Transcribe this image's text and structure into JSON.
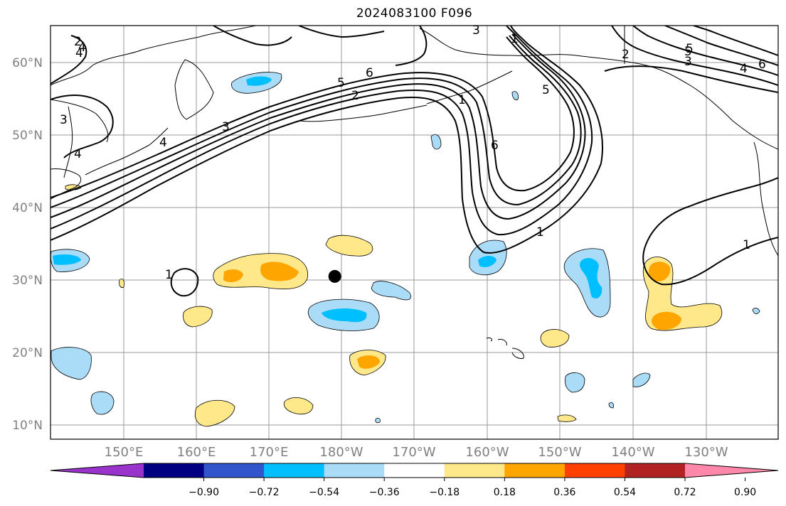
{
  "title": "2024083100 F096",
  "map": {
    "lat_labels": [
      "60°N",
      "50°N",
      "40°N",
      "30°N",
      "20°N",
      "10°N"
    ],
    "lon_labels": [
      "150°E",
      "160°E",
      "170°E",
      "180°W",
      "170°W",
      "160°W",
      "150°W",
      "140°W",
      "130°W"
    ],
    "marker": {
      "name": "black-dot",
      "lon": -181,
      "lat": 30.5
    },
    "contour_labels": [
      "2",
      "4",
      "4",
      "4",
      "1",
      "3",
      "3",
      "4",
      "5",
      "6",
      "2",
      "5",
      "6",
      "1",
      "2",
      "3",
      "5",
      "3",
      "4",
      "6",
      "5",
      "1",
      "1",
      "1"
    ]
  },
  "colorbar": {
    "ticks": [
      "−0.90",
      "−0.72",
      "−0.54",
      "−0.36",
      "−0.18",
      "0.18",
      "0.36",
      "0.54",
      "0.72",
      "0.90"
    ],
    "colors": [
      "#9933cc",
      "#000080",
      "#3355cc",
      "#00bfff",
      "#aadcf8",
      "#ffffff",
      "#ffe88a",
      "#ffa500",
      "#ff4000",
      "#b22222",
      "#ff88aa"
    ]
  }
}
